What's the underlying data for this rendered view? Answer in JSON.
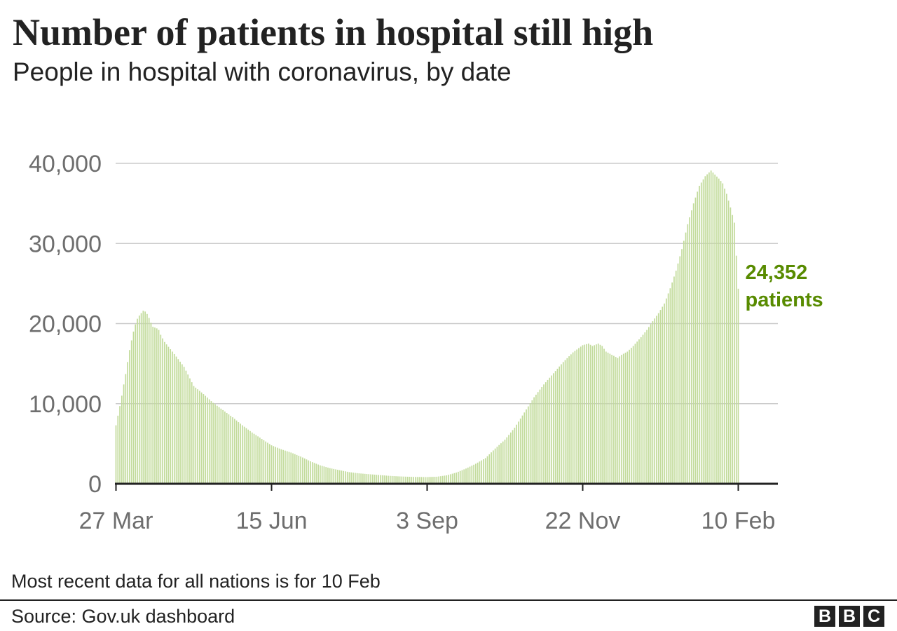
{
  "header": {
    "title": "Number of patients in hospital still high",
    "subtitle": "People in hospital with coronavirus, by date"
  },
  "footer": {
    "note": "Most recent data for all nations is for 10 Feb",
    "source": "Source: Gov.uk dashboard",
    "logo": [
      "B",
      "B",
      "C"
    ]
  },
  "colors": {
    "bar": "#c2db9b",
    "annotation": "#588b00",
    "grid": "#cccccc",
    "baseline": "#222222",
    "tick_text": "#6e6e6e"
  },
  "chart_data": {
    "type": "bar",
    "title": "Number of patients in hospital still high",
    "subtitle": "People in hospital with coronavirus, by date",
    "xlabel": "",
    "ylabel": "",
    "x_range": [
      "27 Mar",
      "10 Feb"
    ],
    "ylim": [
      0,
      40000
    ],
    "yticks": [
      {
        "value": 0,
        "label": "0"
      },
      {
        "value": 10000,
        "label": "10,000"
      },
      {
        "value": 20000,
        "label": "20,000"
      },
      {
        "value": 30000,
        "label": "30,000"
      },
      {
        "value": 40000,
        "label": "40,000"
      }
    ],
    "xticks": [
      {
        "index": 0,
        "label": "27 Mar"
      },
      {
        "index": 80,
        "label": "15 Jun"
      },
      {
        "index": 160,
        "label": "3 Sep"
      },
      {
        "index": 240,
        "label": "22 Nov"
      },
      {
        "index": 320,
        "label": "10 Feb"
      }
    ],
    "grid": true,
    "annotation": {
      "index": 320,
      "value_label": "24,352",
      "unit_label": "patients"
    },
    "keypoints": [
      [
        0,
        7300
      ],
      [
        1,
        8500
      ],
      [
        2,
        9700
      ],
      [
        3,
        11000
      ],
      [
        4,
        12400
      ],
      [
        5,
        13700
      ],
      [
        6,
        15200
      ],
      [
        7,
        16700
      ],
      [
        8,
        17900
      ],
      [
        9,
        19000
      ],
      [
        10,
        19900
      ],
      [
        11,
        20600
      ],
      [
        12,
        21000
      ],
      [
        13,
        21300
      ],
      [
        14,
        21600
      ],
      [
        15,
        21500
      ],
      [
        16,
        21200
      ],
      [
        17,
        20700
      ],
      [
        18,
        20100
      ],
      [
        19,
        19600
      ],
      [
        20,
        19500
      ],
      [
        21,
        19400
      ],
      [
        22,
        19200
      ],
      [
        23,
        18600
      ],
      [
        25,
        17700
      ],
      [
        30,
        16200
      ],
      [
        35,
        14600
      ],
      [
        40,
        12200
      ],
      [
        45,
        11200
      ],
      [
        50,
        10100
      ],
      [
        55,
        9200
      ],
      [
        60,
        8300
      ],
      [
        65,
        7300
      ],
      [
        70,
        6400
      ],
      [
        75,
        5600
      ],
      [
        80,
        4800
      ],
      [
        85,
        4300
      ],
      [
        90,
        3900
      ],
      [
        95,
        3400
      ],
      [
        100,
        2800
      ],
      [
        105,
        2300
      ],
      [
        110,
        1950
      ],
      [
        115,
        1700
      ],
      [
        120,
        1450
      ],
      [
        125,
        1300
      ],
      [
        130,
        1200
      ],
      [
        135,
        1100
      ],
      [
        140,
        1000
      ],
      [
        145,
        930
      ],
      [
        150,
        880
      ],
      [
        155,
        850
      ],
      [
        160,
        840
      ],
      [
        165,
        880
      ],
      [
        170,
        1050
      ],
      [
        175,
        1400
      ],
      [
        180,
        1900
      ],
      [
        185,
        2500
      ],
      [
        190,
        3200
      ],
      [
        195,
        4400
      ],
      [
        200,
        5500
      ],
      [
        205,
        7000
      ],
      [
        210,
        8900
      ],
      [
        215,
        10800
      ],
      [
        220,
        12400
      ],
      [
        225,
        13800
      ],
      [
        230,
        15200
      ],
      [
        235,
        16400
      ],
      [
        240,
        17300
      ],
      [
        243,
        17500
      ],
      [
        245,
        17200
      ],
      [
        248,
        17500
      ],
      [
        250,
        17200
      ],
      [
        252,
        16500
      ],
      [
        255,
        16100
      ],
      [
        258,
        15700
      ],
      [
        260,
        16100
      ],
      [
        263,
        16500
      ],
      [
        266,
        17200
      ],
      [
        270,
        18300
      ],
      [
        273,
        19200
      ],
      [
        276,
        20300
      ],
      [
        279,
        21300
      ],
      [
        282,
        22500
      ],
      [
        285,
        24400
      ],
      [
        288,
        26600
      ],
      [
        291,
        29300
      ],
      [
        294,
        32400
      ],
      [
        297,
        35000
      ],
      [
        300,
        37200
      ],
      [
        303,
        38400
      ],
      [
        306,
        39100
      ],
      [
        308,
        38600
      ],
      [
        310,
        38100
      ],
      [
        312,
        37500
      ],
      [
        314,
        36200
      ],
      [
        316,
        34500
      ],
      [
        318,
        32600
      ],
      [
        320,
        24352
      ]
    ]
  }
}
